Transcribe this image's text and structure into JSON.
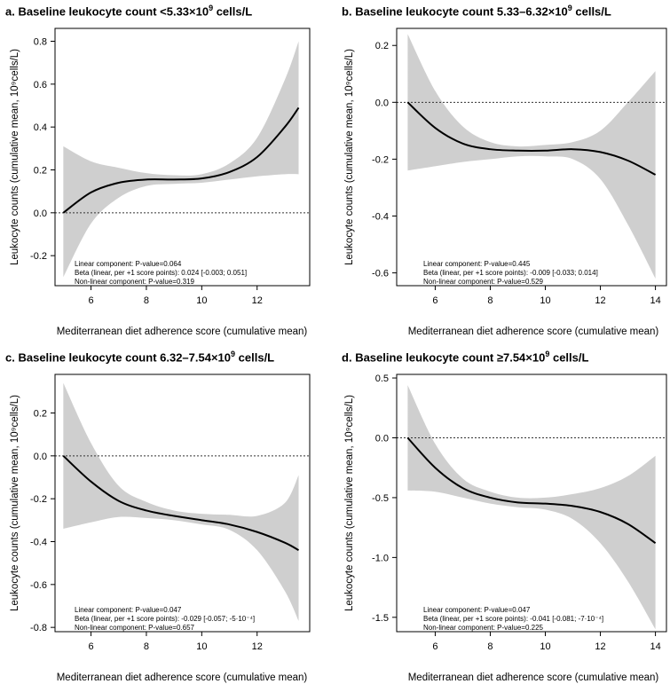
{
  "chart_data": [
    {
      "type": "line",
      "panel_label": "a.",
      "title_pre": "Baseline leukocyte count <5.33×10",
      "title_sup": "9",
      "title_post": " cells/L",
      "xlabel": "Mediterranean diet adherence score (cumulative mean)",
      "ylabel": "Leukocyte counts (cumulative mean, 10⁹cells/L)",
      "xlim": [
        4.7,
        13.9
      ],
      "ylim": [
        -0.34,
        0.86
      ],
      "xticks": [
        6,
        8,
        10,
        12
      ],
      "yticks": [
        -0.2,
        0.0,
        0.2,
        0.4,
        0.6,
        0.8
      ],
      "ytick_labels": [
        "-0.2",
        "0.0",
        "0.2",
        "0.4",
        "0.6",
        "0.8"
      ],
      "reference_line": 0,
      "x": [
        5,
        6,
        7,
        8,
        9,
        10,
        11,
        12,
        13,
        13.5
      ],
      "fit": [
        0.0,
        0.095,
        0.14,
        0.155,
        0.155,
        0.16,
        0.19,
        0.26,
        0.4,
        0.49
      ],
      "ci_lower": [
        -0.3,
        -0.05,
        0.07,
        0.125,
        0.135,
        0.14,
        0.155,
        0.17,
        0.18,
        0.18
      ],
      "ci_upper": [
        0.31,
        0.24,
        0.21,
        0.185,
        0.175,
        0.18,
        0.23,
        0.35,
        0.62,
        0.8
      ],
      "stats": [
        "Linear component: P-value=0.064",
        "Beta (linear, per +1 score points): 0.024 [-0.003; 0.051]",
        "Non-linear component: P-value=0.319"
      ]
    },
    {
      "type": "line",
      "panel_label": "b.",
      "title_pre": "Baseline leukocyte count 5.33–6.32×10",
      "title_sup": "9",
      "title_post": " cells/L",
      "xlabel": "Mediterranean diet adherence score (cumulative mean)",
      "ylabel": "Leukocyte counts (cumulative mean, 10⁹cells/L)",
      "xlim": [
        4.6,
        14.4
      ],
      "ylim": [
        -0.645,
        0.26
      ],
      "xticks": [
        6,
        8,
        10,
        12,
        14
      ],
      "yticks": [
        -0.6,
        -0.4,
        -0.2,
        0.0,
        0.2
      ],
      "ytick_labels": [
        "-0.6",
        "-0.4",
        "-0.2",
        "0.0",
        "0.2"
      ],
      "reference_line": 0,
      "x": [
        5,
        6,
        7,
        8,
        9,
        10,
        11,
        12,
        13,
        14
      ],
      "fit": [
        0.0,
        -0.09,
        -0.145,
        -0.165,
        -0.17,
        -0.17,
        -0.165,
        -0.175,
        -0.205,
        -0.255
      ],
      "ci_lower": [
        -0.24,
        -0.225,
        -0.21,
        -0.2,
        -0.19,
        -0.19,
        -0.2,
        -0.27,
        -0.43,
        -0.62
      ],
      "ci_upper": [
        0.24,
        0.04,
        -0.085,
        -0.14,
        -0.155,
        -0.15,
        -0.14,
        -0.1,
        0.0,
        0.11
      ],
      "stats": [
        "Linear component: P-value=0.445",
        "Beta (linear, per +1 score points): -0.009 [-0.033; 0.014]",
        "Non-linear component: P-value=0.529"
      ]
    },
    {
      "type": "line",
      "panel_label": "c.",
      "title_pre": "Baseline leukocyte count 6.32–7.54×10",
      "title_sup": "9",
      "title_post": " cells/L",
      "xlabel": "Mediterranean diet adherence score (cumulative mean)",
      "ylabel": "Leukocyte counts (cumulative mean, 10⁹cells/L)",
      "xlim": [
        4.7,
        13.9
      ],
      "ylim": [
        -0.82,
        0.38
      ],
      "xticks": [
        6,
        8,
        10,
        12
      ],
      "yticks": [
        -0.8,
        -0.6,
        -0.4,
        -0.2,
        0.0,
        0.2
      ],
      "ytick_labels": [
        "-0.8",
        "-0.6",
        "-0.4",
        "-0.2",
        "0.0",
        "0.2"
      ],
      "reference_line": 0,
      "x": [
        5,
        6,
        7,
        8,
        9,
        10,
        11,
        12,
        13,
        13.5
      ],
      "fit": [
        0.0,
        -0.12,
        -0.21,
        -0.255,
        -0.28,
        -0.3,
        -0.32,
        -0.355,
        -0.405,
        -0.44
      ],
      "ci_lower": [
        -0.34,
        -0.31,
        -0.285,
        -0.29,
        -0.3,
        -0.32,
        -0.345,
        -0.44,
        -0.63,
        -0.77
      ],
      "ci_upper": [
        0.34,
        0.06,
        -0.14,
        -0.215,
        -0.255,
        -0.27,
        -0.275,
        -0.28,
        -0.22,
        -0.09
      ],
      "stats": [
        "Linear component: P-value=0.047",
        "Beta (linear, per +1 score points): -0.029 [-0.057; -5·10⁻⁴]",
        "Non-linear component: P-value=0.657"
      ]
    },
    {
      "type": "line",
      "panel_label": "d.",
      "title_pre": "Baseline leukocyte count ≥7.54×10",
      "title_sup": "9",
      "title_post": " cells/L",
      "xlabel": "Mediterranean diet adherence score (cumulative mean)",
      "ylabel": "Leukocyte counts (cumulative mean, 10⁹cells/L)",
      "xlim": [
        4.6,
        14.4
      ],
      "ylim": [
        -1.62,
        0.53
      ],
      "xticks": [
        6,
        8,
        10,
        12,
        14
      ],
      "yticks": [
        -1.5,
        -1.0,
        -0.5,
        0.0,
        0.5
      ],
      "ytick_labels": [
        "-1.5",
        "-1.0",
        "-0.5",
        "0.0",
        "0.5"
      ],
      "reference_line": 0,
      "x": [
        5,
        6,
        7,
        8,
        9,
        10,
        11,
        12,
        13,
        14
      ],
      "fit": [
        0.0,
        -0.25,
        -0.42,
        -0.5,
        -0.54,
        -0.55,
        -0.57,
        -0.62,
        -0.72,
        -0.88
      ],
      "ci_lower": [
        -0.44,
        -0.45,
        -0.5,
        -0.55,
        -0.58,
        -0.6,
        -0.68,
        -0.88,
        -1.2,
        -1.6
      ],
      "ci_upper": [
        0.44,
        -0.05,
        -0.34,
        -0.45,
        -0.5,
        -0.5,
        -0.47,
        -0.42,
        -0.32,
        -0.15
      ],
      "stats": [
        "Linear component: P-value=0.047",
        "Beta (linear, per +1 score points): -0.041 [-0.081; -7·10⁻⁴]",
        "Non-linear component: P-value=0.225"
      ]
    }
  ]
}
